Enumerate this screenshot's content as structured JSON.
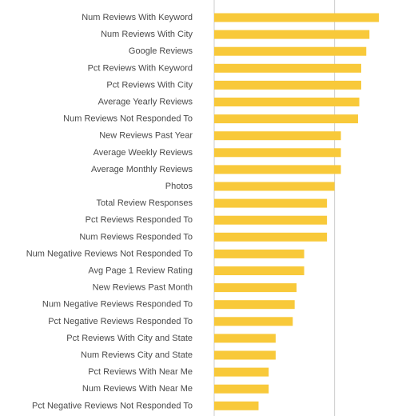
{
  "chart_data": {
    "type": "bar",
    "orientation": "horizontal",
    "title": "",
    "xlabel": "",
    "ylabel": "",
    "categories": [
      "Num Reviews With Keyword",
      "Num Reviews With City",
      "Google Reviews",
      "Pct Reviews With Keyword",
      "Pct Reviews With City",
      "Average Yearly Reviews",
      "Num Reviews Not Responded To",
      "New Reviews Past Year",
      "Average Weekly Reviews",
      "Average Monthly Reviews",
      "Photos",
      "Total Review Responses",
      "Pct Reviews Responded To",
      "Num Reviews Responded To",
      "Num Negative Reviews Not Responded To",
      "Avg Page 1 Review Rating",
      "New Reviews Past Month",
      "Num Negative Reviews Responded To",
      "Pct Negative Reviews Responded To",
      "Pct Reviews With City and State",
      "Num Reviews City and State",
      "Pct Reviews With Near Me",
      "Num Reviews With Near Me",
      "Pct Negative Reviews Not Responded To"
    ],
    "values": [
      0.26,
      0.245,
      0.24,
      0.232,
      0.232,
      0.229,
      0.227,
      0.2,
      0.2,
      0.2,
      0.19,
      0.178,
      0.178,
      0.178,
      0.142,
      0.142,
      0.13,
      0.127,
      0.124,
      0.097,
      0.097,
      0.086,
      0.086,
      0.07
    ],
    "xlim": [
      0,
      0.28
    ],
    "gridline_x": [
      0.19
    ],
    "grid": true,
    "bar_color": "#f8c93a",
    "gridline_color": "#cccccc",
    "label_color": "#4a4a4a"
  }
}
